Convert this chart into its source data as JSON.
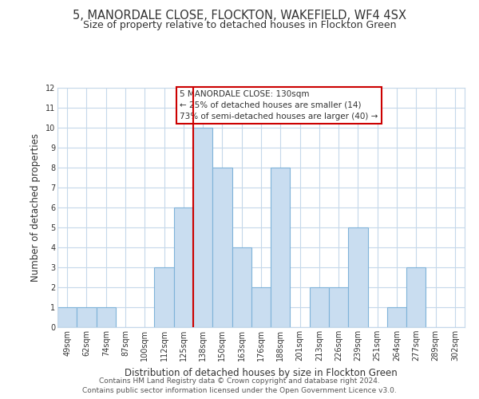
{
  "title": "5, MANORDALE CLOSE, FLOCKTON, WAKEFIELD, WF4 4SX",
  "subtitle": "Size of property relative to detached houses in Flockton Green",
  "xlabel": "Distribution of detached houses by size in Flockton Green",
  "ylabel": "Number of detached properties",
  "categories": [
    "49sqm",
    "62sqm",
    "74sqm",
    "87sqm",
    "100sqm",
    "112sqm",
    "125sqm",
    "138sqm",
    "150sqm",
    "163sqm",
    "176sqm",
    "188sqm",
    "201sqm",
    "213sqm",
    "226sqm",
    "239sqm",
    "251sqm",
    "264sqm",
    "277sqm",
    "289sqm",
    "302sqm"
  ],
  "values": [
    1,
    1,
    1,
    0,
    0,
    3,
    6,
    10,
    8,
    4,
    2,
    8,
    0,
    2,
    2,
    5,
    0,
    1,
    3,
    0,
    0
  ],
  "bar_color": "#c9ddf0",
  "bar_edge_color": "#7fb3d9",
  "vline_color": "#cc0000",
  "vline_x_index": 6,
  "ylim": [
    0,
    12
  ],
  "yticks": [
    0,
    1,
    2,
    3,
    4,
    5,
    6,
    7,
    8,
    9,
    10,
    11,
    12
  ],
  "annotation_title": "5 MANORDALE CLOSE: 130sqm",
  "annotation_line1": "← 25% of detached houses are smaller (14)",
  "annotation_line2": "73% of semi-detached houses are larger (40) →",
  "annotation_box_color": "#ffffff",
  "annotation_box_edge": "#cc0000",
  "footnote1": "Contains HM Land Registry data © Crown copyright and database right 2024.",
  "footnote2": "Contains public sector information licensed under the Open Government Licence v3.0.",
  "bg_color": "#ffffff",
  "grid_color": "#c5d8ea",
  "title_fontsize": 10.5,
  "subtitle_fontsize": 9,
  "xlabel_fontsize": 8.5,
  "ylabel_fontsize": 8.5,
  "tick_fontsize": 7,
  "annot_fontsize": 7.5,
  "footnote_fontsize": 6.5
}
